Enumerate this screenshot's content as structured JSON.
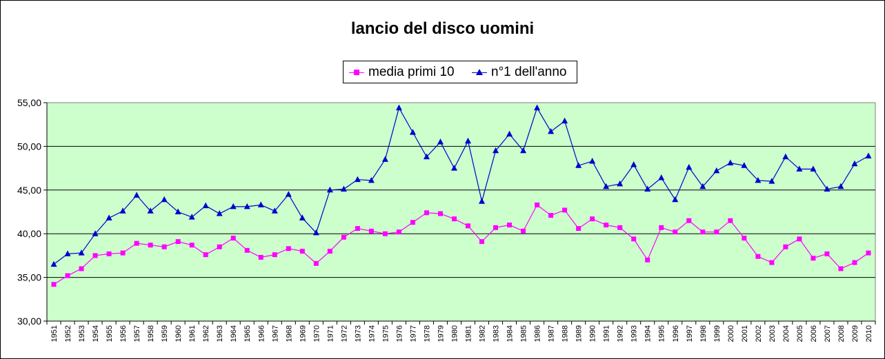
{
  "chart_data": {
    "type": "line",
    "title": "lancio del disco uomini",
    "xlabel": "",
    "ylabel": "",
    "ylim": [
      30,
      55
    ],
    "y_ticks": [
      "30,00",
      "35,00",
      "40,00",
      "45,00",
      "50,00",
      "55,00"
    ],
    "grid": true,
    "legend_position": "top",
    "plot_background": "#ccffcc",
    "x": [
      "1951",
      "1952",
      "1953",
      "1954",
      "1955",
      "1956",
      "1957",
      "1958",
      "1959",
      "1960",
      "1961",
      "1962",
      "1963",
      "1964",
      "1965",
      "1966",
      "1967",
      "1968",
      "1969",
      "1970",
      "1971",
      "1972",
      "1973",
      "1974",
      "1975",
      "1976",
      "1977",
      "1978",
      "1979",
      "1980",
      "1981",
      "1982",
      "1983",
      "1984",
      "1985",
      "1986",
      "1987",
      "1988",
      "1989",
      "1990",
      "1991",
      "1992",
      "1993",
      "1994",
      "1995",
      "1996",
      "1997",
      "1998",
      "1999",
      "2000",
      "2001",
      "2002",
      "2003",
      "2004",
      "2005",
      "2006",
      "2007",
      "2008",
      "2009",
      "2010"
    ],
    "series": [
      {
        "name": "media primi 10",
        "color": "#ff00ff",
        "marker": "square",
        "values": [
          34.2,
          35.2,
          36.0,
          37.5,
          37.7,
          37.8,
          38.9,
          38.7,
          38.5,
          39.1,
          38.7,
          37.6,
          38.5,
          39.5,
          38.1,
          37.3,
          37.6,
          38.3,
          38.0,
          36.6,
          38.0,
          39.6,
          40.6,
          40.3,
          40.0,
          40.2,
          41.3,
          42.4,
          42.3,
          41.7,
          40.9,
          39.1,
          40.7,
          41.0,
          40.3,
          43.3,
          42.1,
          42.7,
          40.6,
          41.7,
          41.0,
          40.7,
          39.4,
          37.0,
          40.7,
          40.2,
          41.5,
          40.2,
          40.2,
          41.5,
          39.5,
          37.4,
          36.7,
          38.5,
          39.4,
          37.2,
          37.7,
          36.0,
          36.7,
          37.8
        ]
      },
      {
        "name": "n°1 dell'anno",
        "color": "#0000cc",
        "marker": "triangle",
        "values": [
          36.5,
          37.7,
          37.8,
          40.0,
          41.8,
          42.6,
          44.4,
          42.6,
          43.9,
          42.5,
          41.9,
          43.2,
          42.3,
          43.1,
          43.1,
          43.3,
          42.6,
          44.5,
          41.8,
          40.1,
          45.0,
          45.1,
          46.2,
          46.1,
          48.5,
          54.4,
          51.6,
          48.8,
          50.5,
          47.5,
          50.6,
          43.7,
          49.5,
          51.4,
          49.5,
          54.4,
          51.7,
          52.9,
          47.8,
          48.3,
          45.4,
          45.7,
          47.9,
          45.1,
          46.4,
          43.9,
          47.6,
          45.4,
          47.2,
          48.1,
          47.8,
          46.1,
          46.0,
          48.8,
          47.4,
          47.4,
          45.1,
          45.4,
          48.0,
          48.9
        ]
      }
    ]
  }
}
